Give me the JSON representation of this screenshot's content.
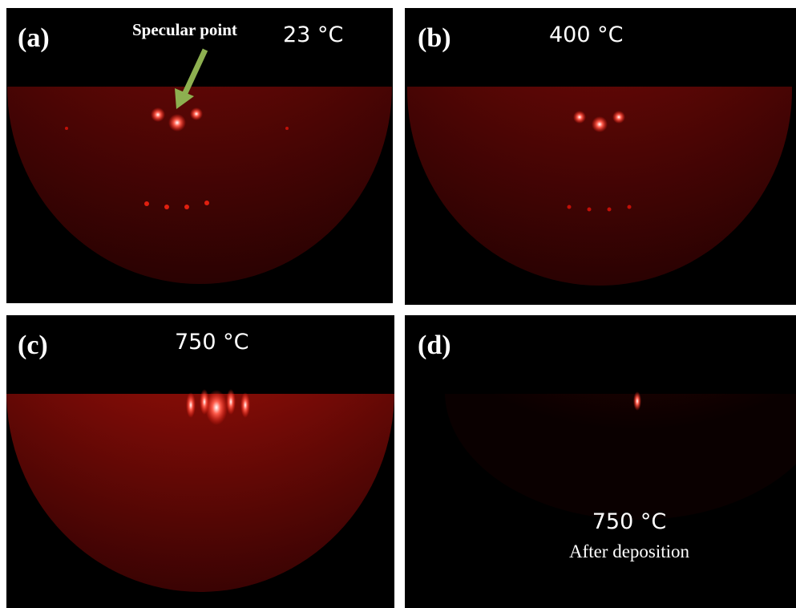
{
  "panels": [
    {
      "label": "(a)",
      "temperature": "23 °C",
      "annotation": "Specular point"
    },
    {
      "label": "(b)",
      "temperature": "400 °C"
    },
    {
      "label": "(c)",
      "temperature": "750 °C"
    },
    {
      "label": "(d)",
      "temperature": "750 °C",
      "note": "After deposition"
    }
  ]
}
